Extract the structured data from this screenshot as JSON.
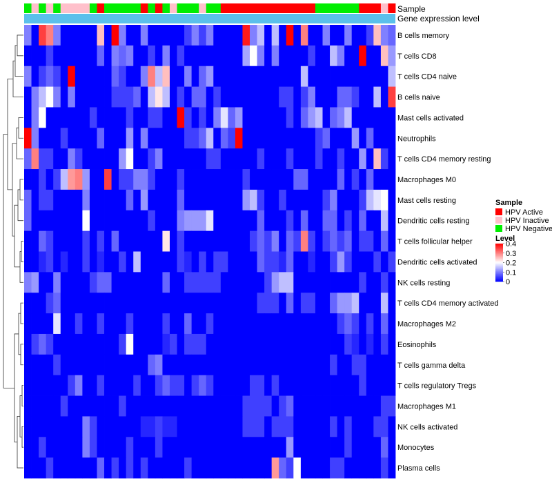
{
  "chart_data": {
    "type": "heatmap",
    "title": "",
    "annotation_tracks": [
      "Sample",
      "Gene expression level"
    ],
    "rows": [
      "B cells memory",
      "T cells CD8",
      "T cells CD4 naive",
      "B cells naive",
      "Mast cells activated",
      "Neutrophils",
      "T cells CD4 memory resting",
      "Macrophages M0",
      "Mast cells resting",
      "Dendritic cells resting",
      "T cells follicular helper",
      "Dendritic cells activated",
      "NK cells resting",
      "T cells CD4 memory activated",
      "Macrophages M2",
      "Eosinophils",
      "T cells gamma delta",
      "T cells regulatory  Tregs",
      "Macrophages M1",
      "NK cells activated",
      "Monocytes",
      "Plasma cells"
    ],
    "column_groups": [
      "HPV Negative",
      "HPV Inactive",
      "HPV Negative",
      "HPV Inactive",
      "HPV Negative",
      "HPV Inactive",
      "HPV Inactive",
      "HPV Inactive",
      "HPV Inactive",
      "HPV Negative",
      "HPV Active",
      "HPV Negative",
      "HPV Negative",
      "HPV Negative",
      "HPV Negative",
      "HPV Negative",
      "HPV Active",
      "HPV Negative",
      "HPV Active",
      "HPV Negative",
      "HPV Inactive",
      "HPV Negative",
      "HPV Negative",
      "HPV Negative",
      "HPV Inactive",
      "HPV Negative",
      "HPV Negative",
      "HPV Active",
      "HPV Active",
      "HPV Active",
      "HPV Active",
      "HPV Active",
      "HPV Active",
      "HPV Active",
      "HPV Active",
      "HPV Active",
      "HPV Active",
      "HPV Active",
      "HPV Active",
      "HPV Active",
      "HPV Negative",
      "HPV Negative",
      "HPV Negative",
      "HPV Negative",
      "HPV Negative",
      "HPV Negative",
      "HPV Active",
      "HPV Active",
      "HPV Active",
      "HPV Inactive",
      "HPV Active"
    ],
    "values": [
      [
        0.1,
        0.0,
        0.35,
        0.3,
        0.1,
        0.0,
        0.0,
        0.0,
        0.0,
        0.0,
        0.25,
        0.0,
        0.4,
        0.1,
        0.0,
        0.0,
        0.1,
        0.0,
        0.0,
        0.0,
        0.0,
        0.0,
        0.05,
        0.1,
        0.05,
        0.1,
        0.0,
        0.0,
        0.0,
        0.0,
        0.38,
        0.1,
        0.15,
        0.0,
        0.15,
        0.0,
        0.4,
        0.0,
        0.3,
        0.0,
        0.0,
        0.1,
        0.0,
        0.0,
        0.1,
        0.0,
        0.0,
        0.05,
        0.25,
        0.1,
        0.08
      ],
      [
        0.0,
        0.0,
        0.0,
        0.05,
        0.0,
        0.0,
        0.0,
        0.0,
        0.0,
        0.0,
        0.08,
        0.0,
        0.1,
        0.08,
        0.1,
        0.0,
        0.0,
        0.05,
        0.0,
        0.1,
        0.0,
        0.05,
        0.0,
        0.0,
        0.0,
        0.0,
        0.0,
        0.0,
        0.0,
        0.0,
        0.13,
        0.2,
        0.1,
        0.0,
        0.1,
        0.0,
        0.0,
        0.0,
        0.0,
        0.05,
        0.0,
        0.0,
        0.15,
        0.1,
        0.0,
        0.0,
        0.4,
        0.0,
        0.0,
        0.25,
        0.12
      ],
      [
        0.1,
        0.0,
        0.05,
        0.08,
        0.05,
        0.0,
        0.4,
        0.0,
        0.0,
        0.0,
        0.0,
        0.0,
        0.08,
        0.05,
        0.0,
        0.0,
        0.1,
        0.3,
        0.15,
        0.25,
        0.0,
        0.0,
        0.1,
        0.0,
        0.08,
        0.12,
        0.0,
        0.0,
        0.0,
        0.0,
        0.0,
        0.0,
        0.0,
        0.0,
        0.0,
        0.0,
        0.0,
        0.0,
        0.15,
        0.0,
        0.0,
        0.0,
        0.0,
        0.0,
        0.0,
        0.0,
        0.0,
        0.0,
        0.0,
        0.0,
        0.15
      ],
      [
        0.0,
        0.1,
        0.15,
        0.2,
        0.1,
        0.0,
        0.1,
        0.0,
        0.0,
        0.0,
        0.0,
        0.0,
        0.05,
        0.05,
        0.05,
        0.08,
        0.0,
        0.15,
        0.22,
        0.15,
        0.0,
        0.05,
        0.0,
        0.08,
        0.08,
        0.0,
        0.05,
        0.0,
        0.0,
        0.0,
        0.0,
        0.0,
        0.0,
        0.0,
        0.0,
        0.05,
        0.05,
        0.0,
        0.05,
        0.1,
        0.0,
        0.0,
        0.0,
        0.08,
        0.08,
        0.05,
        0.0,
        0.0,
        0.15,
        0.0,
        0.35
      ],
      [
        0.0,
        0.1,
        0.2,
        0.0,
        0.0,
        0.0,
        0.0,
        0.0,
        0.0,
        0.05,
        0.0,
        0.0,
        0.0,
        0.0,
        0.05,
        0.0,
        0.0,
        0.05,
        0.05,
        0.0,
        0.0,
        0.4,
        0.05,
        0.0,
        0.05,
        0.0,
        0.1,
        0.18,
        0.08,
        0.12,
        0.0,
        0.0,
        0.0,
        0.0,
        0.0,
        0.0,
        0.05,
        0.0,
        0.08,
        0.12,
        0.15,
        0.0,
        0.08,
        0.1,
        0.15,
        0.0,
        0.0,
        0.0,
        0.0,
        0.0,
        0.0
      ],
      [
        0.4,
        0.1,
        0.0,
        0.0,
        0.0,
        0.05,
        0.0,
        0.0,
        0.0,
        0.0,
        0.08,
        0.0,
        0.0,
        0.0,
        0.12,
        0.0,
        0.1,
        0.0,
        0.0,
        0.0,
        0.0,
        0.0,
        0.05,
        0.05,
        0.08,
        0.15,
        0.0,
        0.08,
        0.05,
        0.4,
        0.0,
        0.0,
        0.0,
        0.0,
        0.0,
        0.0,
        0.0,
        0.0,
        0.0,
        0.0,
        0.05,
        0.08,
        0.0,
        0.0,
        0.0,
        0.12,
        0.0,
        0.08,
        0.0,
        0.0,
        0.0
      ],
      [
        0.08,
        0.3,
        0.05,
        0.05,
        0.0,
        0.0,
        0.1,
        0.05,
        0.0,
        0.0,
        0.0,
        0.0,
        0.0,
        0.12,
        0.2,
        0.0,
        0.0,
        0.05,
        0.1,
        0.0,
        0.0,
        0.0,
        0.0,
        0.0,
        0.0,
        0.05,
        0.05,
        0.0,
        0.0,
        0.0,
        0.0,
        0.0,
        0.05,
        0.0,
        0.0,
        0.0,
        0.05,
        0.0,
        0.0,
        0.0,
        0.05,
        0.0,
        0.0,
        0.05,
        0.0,
        0.0,
        0.12,
        0.0,
        0.25,
        0.05,
        0.0
      ],
      [
        0.0,
        0.0,
        0.05,
        0.0,
        0.05,
        0.15,
        0.28,
        0.3,
        0.12,
        0.0,
        0.0,
        0.35,
        0.0,
        0.05,
        0.05,
        0.1,
        0.1,
        0.05,
        0.0,
        0.0,
        0.0,
        0.05,
        0.0,
        0.0,
        0.0,
        0.0,
        0.0,
        0.0,
        0.0,
        0.0,
        0.05,
        0.0,
        0.0,
        0.0,
        0.0,
        0.0,
        0.0,
        0.08,
        0.08,
        0.0,
        0.0,
        0.0,
        0.0,
        0.08,
        0.0,
        0.05,
        0.0,
        0.08,
        0.0,
        0.0,
        0.0
      ],
      [
        0.08,
        0.0,
        0.05,
        0.05,
        0.0,
        0.0,
        0.0,
        0.0,
        0.1,
        0.0,
        0.0,
        0.0,
        0.0,
        0.0,
        0.08,
        0.0,
        0.12,
        0.0,
        0.0,
        0.0,
        0.0,
        0.08,
        0.0,
        0.0,
        0.0,
        0.0,
        0.0,
        0.0,
        0.0,
        0.0,
        0.12,
        0.15,
        0.05,
        0.0,
        0.0,
        0.05,
        0.0,
        0.0,
        0.0,
        0.0,
        0.0,
        0.05,
        0.1,
        0.0,
        0.0,
        0.0,
        0.05,
        0.15,
        0.18,
        0.2,
        0.0
      ],
      [
        0.08,
        0.0,
        0.0,
        0.0,
        0.0,
        0.0,
        0.0,
        0.0,
        0.2,
        0.0,
        0.0,
        0.0,
        0.0,
        0.0,
        0.0,
        0.0,
        0.0,
        0.05,
        0.0,
        0.0,
        0.0,
        0.1,
        0.12,
        0.12,
        0.12,
        0.18,
        0.0,
        0.0,
        0.0,
        0.0,
        0.0,
        0.0,
        0.08,
        0.0,
        0.0,
        0.0,
        0.05,
        0.0,
        0.08,
        0.0,
        0.0,
        0.08,
        0.08,
        0.0,
        0.05,
        0.0,
        0.08,
        0.0,
        0.0,
        0.15,
        0.0
      ],
      [
        0.0,
        0.0,
        0.08,
        0.05,
        0.0,
        0.0,
        0.0,
        0.0,
        0.05,
        0.0,
        0.05,
        0.0,
        0.08,
        0.0,
        0.0,
        0.0,
        0.0,
        0.0,
        0.0,
        0.22,
        0.0,
        0.05,
        0.0,
        0.0,
        0.0,
        0.0,
        0.0,
        0.0,
        0.0,
        0.0,
        0.0,
        0.05,
        0.08,
        0.05,
        0.1,
        0.0,
        0.08,
        0.05,
        0.3,
        0.05,
        0.0,
        0.05,
        0.08,
        0.05,
        0.08,
        0.0,
        0.05,
        0.05,
        0.0,
        0.08,
        0.0
      ],
      [
        0.0,
        0.0,
        0.03,
        0.05,
        0.0,
        0.03,
        0.0,
        0.0,
        0.05,
        0.0,
        0.03,
        0.0,
        0.0,
        0.05,
        0.0,
        0.15,
        0.0,
        0.0,
        0.0,
        0.0,
        0.0,
        0.05,
        0.03,
        0.0,
        0.05,
        0.0,
        0.05,
        0.05,
        0.0,
        0.0,
        0.0,
        0.0,
        0.08,
        0.05,
        0.05,
        0.03,
        0.08,
        0.0,
        0.0,
        0.03,
        0.0,
        0.0,
        0.05,
        0.12,
        0.05,
        0.0,
        0.0,
        0.0,
        0.05,
        0.0,
        0.05
      ],
      [
        0.1,
        0.12,
        0.0,
        0.0,
        0.1,
        0.0,
        0.0,
        0.0,
        0.0,
        0.05,
        0.08,
        0.08,
        0.0,
        0.0,
        0.0,
        0.0,
        0.0,
        0.0,
        0.0,
        0.08,
        0.0,
        0.0,
        0.05,
        0.05,
        0.05,
        0.05,
        0.05,
        0.0,
        0.0,
        0.0,
        0.0,
        0.0,
        0.0,
        0.05,
        0.12,
        0.15,
        0.15,
        0.0,
        0.0,
        0.0,
        0.0,
        0.0,
        0.0,
        0.0,
        0.0,
        0.0,
        0.05,
        0.0,
        0.0,
        0.05,
        0.0
      ],
      [
        0.0,
        0.0,
        0.0,
        0.05,
        0.08,
        0.0,
        0.0,
        0.0,
        0.0,
        0.0,
        0.0,
        0.0,
        0.0,
        0.0,
        0.0,
        0.0,
        0.0,
        0.0,
        0.0,
        0.0,
        0.0,
        0.0,
        0.0,
        0.0,
        0.0,
        0.0,
        0.0,
        0.0,
        0.0,
        0.0,
        0.0,
        0.0,
        0.05,
        0.05,
        0.05,
        0.0,
        0.08,
        0.0,
        0.05,
        0.05,
        0.0,
        0.0,
        0.08,
        0.12,
        0.12,
        0.15,
        0.0,
        0.0,
        0.0,
        0.15,
        0.0
      ],
      [
        0.0,
        0.0,
        0.0,
        0.0,
        0.18,
        0.0,
        0.0,
        0.05,
        0.0,
        0.0,
        0.05,
        0.0,
        0.0,
        0.0,
        0.05,
        0.0,
        0.0,
        0.0,
        0.0,
        0.05,
        0.0,
        0.0,
        0.08,
        0.0,
        0.0,
        0.05,
        0.0,
        0.0,
        0.0,
        0.0,
        0.0,
        0.0,
        0.0,
        0.0,
        0.0,
        0.0,
        0.0,
        0.0,
        0.0,
        0.0,
        0.0,
        0.0,
        0.0,
        0.05,
        0.08,
        0.05,
        0.0,
        0.05,
        0.0,
        0.08,
        0.0
      ],
      [
        0.0,
        0.05,
        0.08,
        0.05,
        0.0,
        0.0,
        0.0,
        0.0,
        0.0,
        0.0,
        0.0,
        0.0,
        0.0,
        0.05,
        0.2,
        0.0,
        0.0,
        0.0,
        0.0,
        0.03,
        0.05,
        0.0,
        0.05,
        0.05,
        0.05,
        0.0,
        0.0,
        0.0,
        0.0,
        0.0,
        0.0,
        0.0,
        0.0,
        0.0,
        0.0,
        0.0,
        0.0,
        0.0,
        0.0,
        0.0,
        0.0,
        0.0,
        0.0,
        0.0,
        0.05,
        0.03,
        0.0,
        0.03,
        0.0,
        0.05,
        0.0
      ],
      [
        0.0,
        0.0,
        0.0,
        0.0,
        0.05,
        0.0,
        0.0,
        0.0,
        0.0,
        0.0,
        0.0,
        0.0,
        0.0,
        0.0,
        0.0,
        0.0,
        0.0,
        0.08,
        0.1,
        0.0,
        0.0,
        0.0,
        0.0,
        0.0,
        0.0,
        0.0,
        0.0,
        0.0,
        0.0,
        0.0,
        0.0,
        0.0,
        0.0,
        0.0,
        0.0,
        0.0,
        0.0,
        0.0,
        0.0,
        0.0,
        0.0,
        0.0,
        0.05,
        0.0,
        0.0,
        0.05,
        0.05,
        0.0,
        0.0,
        0.0,
        0.0
      ],
      [
        0.0,
        0.0,
        0.0,
        0.0,
        0.0,
        0.0,
        0.05,
        0.1,
        0.0,
        0.0,
        0.05,
        0.0,
        0.0,
        0.0,
        0.0,
        0.05,
        0.0,
        0.0,
        0.05,
        0.08,
        0.05,
        0.05,
        0.0,
        0.05,
        0.08,
        0.05,
        0.0,
        0.0,
        0.0,
        0.0,
        0.0,
        0.05,
        0.05,
        0.0,
        0.05,
        0.0,
        0.0,
        0.0,
        0.0,
        0.0,
        0.0,
        0.0,
        0.0,
        0.0,
        0.0,
        0.0,
        0.05,
        0.0,
        0.0,
        0.0,
        0.0
      ],
      [
        0.0,
        0.0,
        0.0,
        0.0,
        0.0,
        0.05,
        0.0,
        0.0,
        0.0,
        0.0,
        0.0,
        0.0,
        0.0,
        0.05,
        0.0,
        0.0,
        0.0,
        0.0,
        0.0,
        0.0,
        0.0,
        0.0,
        0.0,
        0.0,
        0.0,
        0.0,
        0.0,
        0.0,
        0.0,
        0.0,
        0.05,
        0.05,
        0.05,
        0.05,
        0.0,
        0.05,
        0.08,
        0.0,
        0.0,
        0.0,
        0.0,
        0.0,
        0.0,
        0.0,
        0.0,
        0.0,
        0.0,
        0.0,
        0.0,
        0.05,
        0.05
      ],
      [
        0.0,
        0.0,
        0.0,
        0.0,
        0.0,
        0.0,
        0.0,
        0.0,
        0.1,
        0.05,
        0.0,
        0.0,
        0.0,
        0.0,
        0.0,
        0.0,
        0.03,
        0.03,
        0.05,
        0.03,
        0.03,
        0.0,
        0.0,
        0.0,
        0.0,
        0.0,
        0.0,
        0.0,
        0.0,
        0.0,
        0.05,
        0.05,
        0.05,
        0.0,
        0.05,
        0.05,
        0.05,
        0.0,
        0.0,
        0.0,
        0.0,
        0.0,
        0.05,
        0.0,
        0.05,
        0.0,
        0.0,
        0.0,
        0.05,
        0.05,
        0.0
      ],
      [
        0.0,
        0.0,
        0.05,
        0.0,
        0.0,
        0.0,
        0.0,
        0.0,
        0.1,
        0.05,
        0.0,
        0.0,
        0.0,
        0.0,
        0.05,
        0.0,
        0.0,
        0.0,
        0.05,
        0.0,
        0.0,
        0.0,
        0.0,
        0.0,
        0.0,
        0.0,
        0.0,
        0.0,
        0.0,
        0.0,
        0.0,
        0.0,
        0.0,
        0.0,
        0.0,
        0.0,
        0.12,
        0.0,
        0.0,
        0.0,
        0.0,
        0.0,
        0.0,
        0.0,
        0.05,
        0.0,
        0.0,
        0.0,
        0.0,
        0.08,
        0.0
      ],
      [
        0.0,
        0.0,
        0.0,
        0.05,
        0.0,
        0.0,
        0.0,
        0.0,
        0.0,
        0.0,
        0.08,
        0.0,
        0.05,
        0.0,
        0.05,
        0.0,
        0.05,
        0.0,
        0.0,
        0.0,
        0.0,
        0.0,
        0.05,
        0.0,
        0.0,
        0.0,
        0.0,
        0.0,
        0.0,
        0.0,
        0.0,
        0.0,
        0.0,
        0.0,
        0.28,
        0.08,
        0.05,
        0.2,
        0.0,
        0.0,
        0.0,
        0.0,
        0.05,
        0.05,
        0.0,
        0.0,
        0.0,
        0.0,
        0.0,
        0.05,
        0.0
      ]
    ],
    "legend_sample": {
      "title": "Sample",
      "entries": [
        {
          "label": "HPV Active",
          "color": "#ff0000"
        },
        {
          "label": "HPV Inactive",
          "color": "#ffc0cb"
        },
        {
          "label": "HPV Negative",
          "color": "#00ee00"
        }
      ]
    },
    "legend_level": {
      "title": "Level",
      "ticks": [
        "0.4",
        "0.3",
        "0.2",
        "0.1",
        "0"
      ],
      "tick_values": [
        0.4,
        0.3,
        0.2,
        0.1,
        0.0
      ],
      "range": [
        0,
        0.4
      ]
    },
    "gene_expression_color": "#5bc0eb",
    "color_low": "#0000ff",
    "color_mid": "#ffffff",
    "color_high": "#ff0000",
    "mid_value": 0.2
  }
}
